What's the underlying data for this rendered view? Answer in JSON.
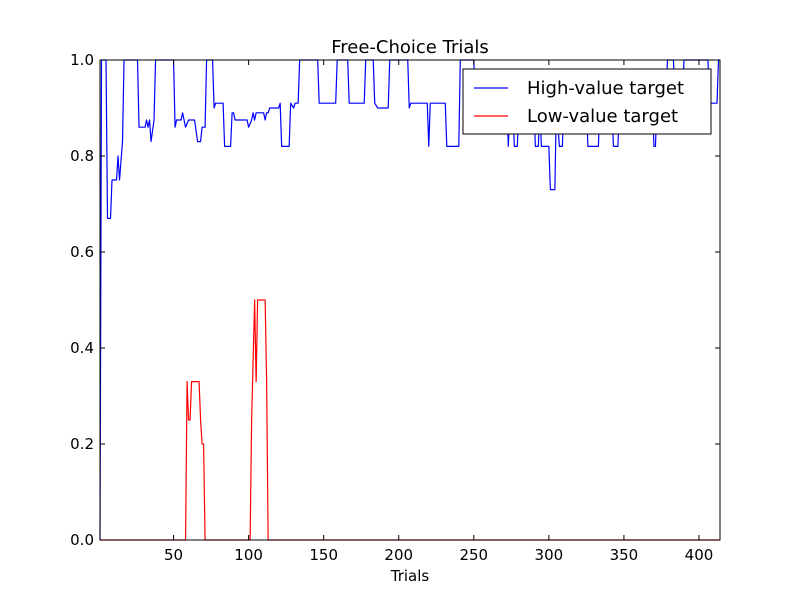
{
  "chart_data": {
    "type": "line",
    "title": "Free-Choice Trials",
    "xlabel": "Trials",
    "ylabel": "",
    "xlim": [
      1,
      414
    ],
    "ylim": [
      0,
      1
    ],
    "xticks": [
      50,
      100,
      150,
      200,
      250,
      300,
      350,
      400
    ],
    "xtick_labels": [
      "50",
      "100",
      "150",
      "200",
      "250",
      "300",
      "350",
      "400"
    ],
    "yticks": [
      0.0,
      0.2,
      0.4,
      0.6,
      0.8,
      1.0
    ],
    "ytick_labels": [
      "0.0",
      "0.2",
      "0.4",
      "0.6",
      "0.8",
      "1.0"
    ],
    "grid": false,
    "legend": {
      "position": "top-right"
    },
    "series": [
      {
        "name": "High-value target",
        "color": "#0000ff",
        "points": [
          [
            1,
            0.0
          ],
          [
            2,
            1.0
          ],
          [
            5,
            1.0
          ],
          [
            6,
            0.67
          ],
          [
            8,
            0.67
          ],
          [
            9,
            0.75
          ],
          [
            12,
            0.75
          ],
          [
            13,
            0.8
          ],
          [
            14,
            0.75
          ],
          [
            16,
            0.83
          ],
          [
            17,
            1.0
          ],
          [
            26,
            1.0
          ],
          [
            27,
            0.86
          ],
          [
            31,
            0.86
          ],
          [
            32,
            0.875
          ],
          [
            33,
            0.86
          ],
          [
            34,
            0.875
          ],
          [
            35,
            0.83
          ],
          [
            37,
            0.875
          ],
          [
            38,
            1.0
          ],
          [
            50,
            1.0
          ],
          [
            51,
            0.86
          ],
          [
            52,
            0.875
          ],
          [
            55,
            0.875
          ],
          [
            56,
            0.89
          ],
          [
            57,
            0.875
          ],
          [
            58,
            0.86
          ],
          [
            60,
            0.875
          ],
          [
            64,
            0.875
          ],
          [
            66,
            0.83
          ],
          [
            68,
            0.83
          ],
          [
            69,
            0.86
          ],
          [
            71,
            0.86
          ],
          [
            72,
            1.0
          ],
          [
            76,
            1.0
          ],
          [
            77,
            0.9
          ],
          [
            78,
            0.91
          ],
          [
            83,
            0.91
          ],
          [
            84,
            0.82
          ],
          [
            88,
            0.82
          ],
          [
            89,
            0.89
          ],
          [
            90,
            0.89
          ],
          [
            91,
            0.875
          ],
          [
            99,
            0.875
          ],
          [
            100,
            0.86
          ],
          [
            102,
            0.875
          ],
          [
            103,
            0.89
          ],
          [
            104,
            0.875
          ],
          [
            105,
            0.89
          ],
          [
            110,
            0.89
          ],
          [
            111,
            0.875
          ],
          [
            112,
            0.89
          ],
          [
            113,
            0.89
          ],
          [
            114,
            0.9
          ],
          [
            120,
            0.9
          ],
          [
            121,
            0.91
          ],
          [
            122,
            0.82
          ],
          [
            127,
            0.82
          ],
          [
            128,
            0.91
          ],
          [
            130,
            0.9
          ],
          [
            131,
            0.91
          ],
          [
            133,
            0.91
          ],
          [
            134,
            1.0
          ],
          [
            146,
            1.0
          ],
          [
            147,
            0.91
          ],
          [
            158,
            0.91
          ],
          [
            159,
            1.0
          ],
          [
            166,
            1.0
          ],
          [
            167,
            0.91
          ],
          [
            177,
            0.91
          ],
          [
            178,
            1.0
          ],
          [
            183,
            1.0
          ],
          [
            184,
            0.91
          ],
          [
            186,
            0.9
          ],
          [
            193,
            0.9
          ],
          [
            194,
            1.0
          ],
          [
            206,
            1.0
          ],
          [
            207,
            0.9
          ],
          [
            208,
            0.91
          ],
          [
            219,
            0.91
          ],
          [
            220,
            0.82
          ],
          [
            221,
            0.91
          ],
          [
            231,
            0.91
          ],
          [
            232,
            0.82
          ],
          [
            240,
            0.82
          ],
          [
            241,
            1.0
          ],
          [
            250,
            1.0
          ],
          [
            251,
            0.91
          ],
          [
            272,
            0.91
          ],
          [
            273,
            0.82
          ],
          [
            274,
            0.91
          ],
          [
            276,
            0.91
          ],
          [
            277,
            0.82
          ],
          [
            279,
            0.82
          ],
          [
            280,
            0.91
          ],
          [
            290,
            0.91
          ],
          [
            291,
            0.82
          ],
          [
            293,
            0.82
          ],
          [
            294,
            0.91
          ],
          [
            295,
            0.82
          ],
          [
            300,
            0.82
          ],
          [
            301,
            0.73
          ],
          [
            304,
            0.73
          ],
          [
            305,
            0.91
          ],
          [
            307,
            0.82
          ],
          [
            309,
            0.82
          ],
          [
            310,
            0.91
          ],
          [
            325,
            0.91
          ],
          [
            326,
            0.82
          ],
          [
            333,
            0.82
          ],
          [
            334,
            0.91
          ],
          [
            342,
            0.91
          ],
          [
            343,
            0.82
          ],
          [
            346,
            0.82
          ],
          [
            347,
            0.91
          ],
          [
            369,
            0.91
          ],
          [
            370,
            0.82
          ],
          [
            371,
            0.82
          ],
          [
            372,
            0.91
          ],
          [
            378,
            0.91
          ],
          [
            379,
            1.0
          ],
          [
            383,
            1.0
          ],
          [
            384,
            0.91
          ],
          [
            389,
            0.91
          ],
          [
            390,
            1.0
          ],
          [
            406,
            1.0
          ],
          [
            407,
            0.91
          ],
          [
            412,
            0.91
          ],
          [
            413,
            1.0
          ],
          [
            414,
            1.0
          ]
        ]
      },
      {
        "name": "Low-value target",
        "color": "#ff0000",
        "points": [
          [
            1,
            0.0
          ],
          [
            58,
            0.0
          ],
          [
            59,
            0.33
          ],
          [
            60,
            0.25
          ],
          [
            61,
            0.25
          ],
          [
            62,
            0.33
          ],
          [
            67,
            0.33
          ],
          [
            68,
            0.25
          ],
          [
            69,
            0.2
          ],
          [
            70,
            0.2
          ],
          [
            71,
            0.0
          ],
          [
            101,
            0.0
          ],
          [
            102,
            0.25
          ],
          [
            104,
            0.5
          ],
          [
            105,
            0.33
          ],
          [
            106,
            0.5
          ],
          [
            111,
            0.5
          ],
          [
            112,
            0.33
          ],
          [
            113,
            0.0
          ],
          [
            414,
            0.0
          ]
        ]
      }
    ]
  }
}
